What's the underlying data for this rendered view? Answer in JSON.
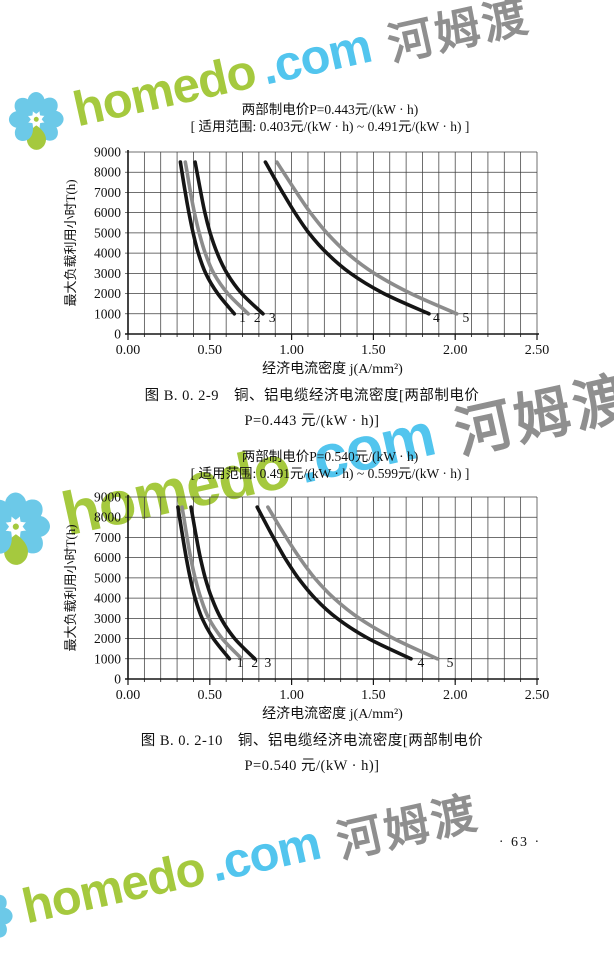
{
  "page": {
    "number": "· 63 ·",
    "background": "#ffffff"
  },
  "watermark": {
    "brand": "homedo",
    "tld": ".com",
    "cjk": "河姆渡",
    "colors": {
      "brand": "#a5c93e",
      "tld": "#52c5ee",
      "cjk": "#8f8f8f",
      "petal_blue": "#6cc9e8",
      "petal_green": "#a5c93e"
    }
  },
  "chart_data": [
    {
      "type": "line",
      "title": "两部制电价P=0.443元/(kW · h)",
      "subtitle": "[ 适用范围: 0.403元/(kW · h) ~ 0.491元/(kW · h) ]",
      "caption_line1": "图 B. 0. 2-9　铜、铝电缆经济电流密度[两部制电价",
      "caption_line2": "P=0.443 元/(kW · h)]",
      "xlabel": "经济电流密度 j(A/mm²)",
      "ylabel": "最大负载利用小时T(h)",
      "xlim": [
        0,
        2.5
      ],
      "ylim": [
        0,
        9000
      ],
      "x_tick_values": [
        0,
        0.5,
        1.0,
        1.5,
        2.0,
        2.5
      ],
      "x_tick_labels": [
        "0.00",
        "0.50",
        "1.00",
        "1.50",
        "2.00",
        "2.50"
      ],
      "y_tick_values": [
        0,
        1000,
        2000,
        3000,
        4000,
        5000,
        6000,
        7000,
        8000,
        9000
      ],
      "y_tick_labels": [
        "0",
        "1000",
        "2000",
        "3000",
        "4000",
        "5000",
        "6000",
        "7000",
        "8000",
        "9000"
      ],
      "grid": {
        "on": true,
        "x_step": 0.1,
        "y_step": 1000
      },
      "axis_color": "#151515",
      "grid_color": "#3f3f3f",
      "series": [
        {
          "name": "1",
          "color": "#151515",
          "label_pos": [
            0.7,
            600
          ],
          "points": [
            [
              0.32,
              8500
            ],
            [
              0.33,
              8000
            ],
            [
              0.35,
              7000
            ],
            [
              0.372,
              6000
            ],
            [
              0.398,
              5000
            ],
            [
              0.43,
              4000
            ],
            [
              0.475,
              3000
            ],
            [
              0.548,
              2000
            ],
            [
              0.65,
              1000
            ]
          ]
        },
        {
          "name": "2",
          "color": "#8c8c8c",
          "label_pos": [
            0.79,
            600
          ],
          "points": [
            [
              0.35,
              8500
            ],
            [
              0.361,
              8000
            ],
            [
              0.382,
              7000
            ],
            [
              0.406,
              6000
            ],
            [
              0.435,
              5000
            ],
            [
              0.472,
              4000
            ],
            [
              0.524,
              3000
            ],
            [
              0.61,
              2000
            ],
            [
              0.735,
              1000
            ]
          ]
        },
        {
          "name": "3",
          "color": "#151515",
          "label_pos": [
            0.882,
            600
          ],
          "points": [
            [
              0.41,
              8500
            ],
            [
              0.422,
              8000
            ],
            [
              0.445,
              7000
            ],
            [
              0.47,
              6000
            ],
            [
              0.502,
              5000
            ],
            [
              0.545,
              4000
            ],
            [
              0.605,
              3000
            ],
            [
              0.695,
              2000
            ],
            [
              0.825,
              1000
            ]
          ]
        },
        {
          "name": "4",
          "color": "#151515",
          "label_pos": [
            1.885,
            600
          ],
          "points": [
            [
              0.84,
              8500
            ],
            [
              0.875,
              8000
            ],
            [
              0.945,
              7000
            ],
            [
              1.02,
              6000
            ],
            [
              1.105,
              5000
            ],
            [
              1.215,
              4000
            ],
            [
              1.36,
              3000
            ],
            [
              1.565,
              2000
            ],
            [
              1.84,
              1000
            ]
          ]
        },
        {
          "name": "5",
          "color": "#8c8c8c",
          "label_pos": [
            2.065,
            600
          ],
          "points": [
            [
              0.91,
              8500
            ],
            [
              0.95,
              8000
            ],
            [
              1.03,
              7000
            ],
            [
              1.115,
              6000
            ],
            [
              1.215,
              5000
            ],
            [
              1.34,
              4000
            ],
            [
              1.505,
              3000
            ],
            [
              1.73,
              2000
            ],
            [
              2.01,
              1000
            ]
          ]
        }
      ]
    },
    {
      "type": "line",
      "title": "两部制电价P=0.540元/(kW · h)",
      "subtitle": "[ 适用范围: 0.491元/(kW · h) ~ 0.599元/(kW · h) ]",
      "caption_line1": "图 B. 0. 2-10　铜、铝电缆经济电流密度[两部制电价",
      "caption_line2": "P=0.540 元/(kW · h)]",
      "xlabel": "经济电流密度 j(A/mm²)",
      "ylabel": "最大负载利用小时T(h)",
      "xlim": [
        0,
        2.5
      ],
      "ylim": [
        0,
        9000
      ],
      "x_tick_values": [
        0,
        0.5,
        1.0,
        1.5,
        2.0,
        2.5
      ],
      "x_tick_labels": [
        "0.00",
        "0.50",
        "1.00",
        "1.50",
        "2.00",
        "2.50"
      ],
      "y_tick_values": [
        0,
        1000,
        2000,
        3000,
        4000,
        5000,
        6000,
        7000,
        8000,
        9000
      ],
      "y_tick_labels": [
        "0",
        "1000",
        "2000",
        "3000",
        "4000",
        "5000",
        "6000",
        "7000",
        "8000",
        "9000"
      ],
      "grid": {
        "on": true,
        "x_step": 0.1,
        "y_step": 1000
      },
      "axis_color": "#151515",
      "grid_color": "#3f3f3f",
      "series": [
        {
          "name": "1",
          "color": "#151515",
          "label_pos": [
            0.685,
            600
          ],
          "points": [
            [
              0.305,
              8500
            ],
            [
              0.315,
              8000
            ],
            [
              0.335,
              7000
            ],
            [
              0.356,
              6000
            ],
            [
              0.38,
              5000
            ],
            [
              0.41,
              4000
            ],
            [
              0.453,
              3000
            ],
            [
              0.522,
              2000
            ],
            [
              0.62,
              1000
            ]
          ]
        },
        {
          "name": "2",
          "color": "#8c8c8c",
          "label_pos": [
            0.775,
            600
          ],
          "points": [
            [
              0.33,
              8500
            ],
            [
              0.341,
              8000
            ],
            [
              0.361,
              7000
            ],
            [
              0.383,
              6000
            ],
            [
              0.41,
              5000
            ],
            [
              0.445,
              4000
            ],
            [
              0.494,
              3000
            ],
            [
              0.576,
              2000
            ],
            [
              0.695,
              1000
            ]
          ]
        },
        {
          "name": "3",
          "color": "#151515",
          "label_pos": [
            0.855,
            600
          ],
          "points": [
            [
              0.385,
              8500
            ],
            [
              0.396,
              8000
            ],
            [
              0.418,
              7000
            ],
            [
              0.442,
              6000
            ],
            [
              0.472,
              5000
            ],
            [
              0.512,
              4000
            ],
            [
              0.568,
              3000
            ],
            [
              0.652,
              2000
            ],
            [
              0.775,
              1000
            ]
          ]
        },
        {
          "name": "4",
          "color": "#151515",
          "label_pos": [
            1.79,
            600
          ],
          "points": [
            [
              0.79,
              8500
            ],
            [
              0.822,
              8000
            ],
            [
              0.888,
              7000
            ],
            [
              0.958,
              6000
            ],
            [
              1.04,
              5000
            ],
            [
              1.142,
              4000
            ],
            [
              1.278,
              3000
            ],
            [
              1.47,
              2000
            ],
            [
              1.73,
              1000
            ]
          ]
        },
        {
          "name": "5",
          "color": "#8c8c8c",
          "label_pos": [
            1.968,
            600
          ],
          "points": [
            [
              0.855,
              8500
            ],
            [
              0.892,
              8000
            ],
            [
              0.967,
              7000
            ],
            [
              1.048,
              6000
            ],
            [
              1.14,
              5000
            ],
            [
              1.258,
              4000
            ],
            [
              1.413,
              3000
            ],
            [
              1.625,
              2000
            ],
            [
              1.89,
              1000
            ]
          ]
        }
      ]
    }
  ]
}
